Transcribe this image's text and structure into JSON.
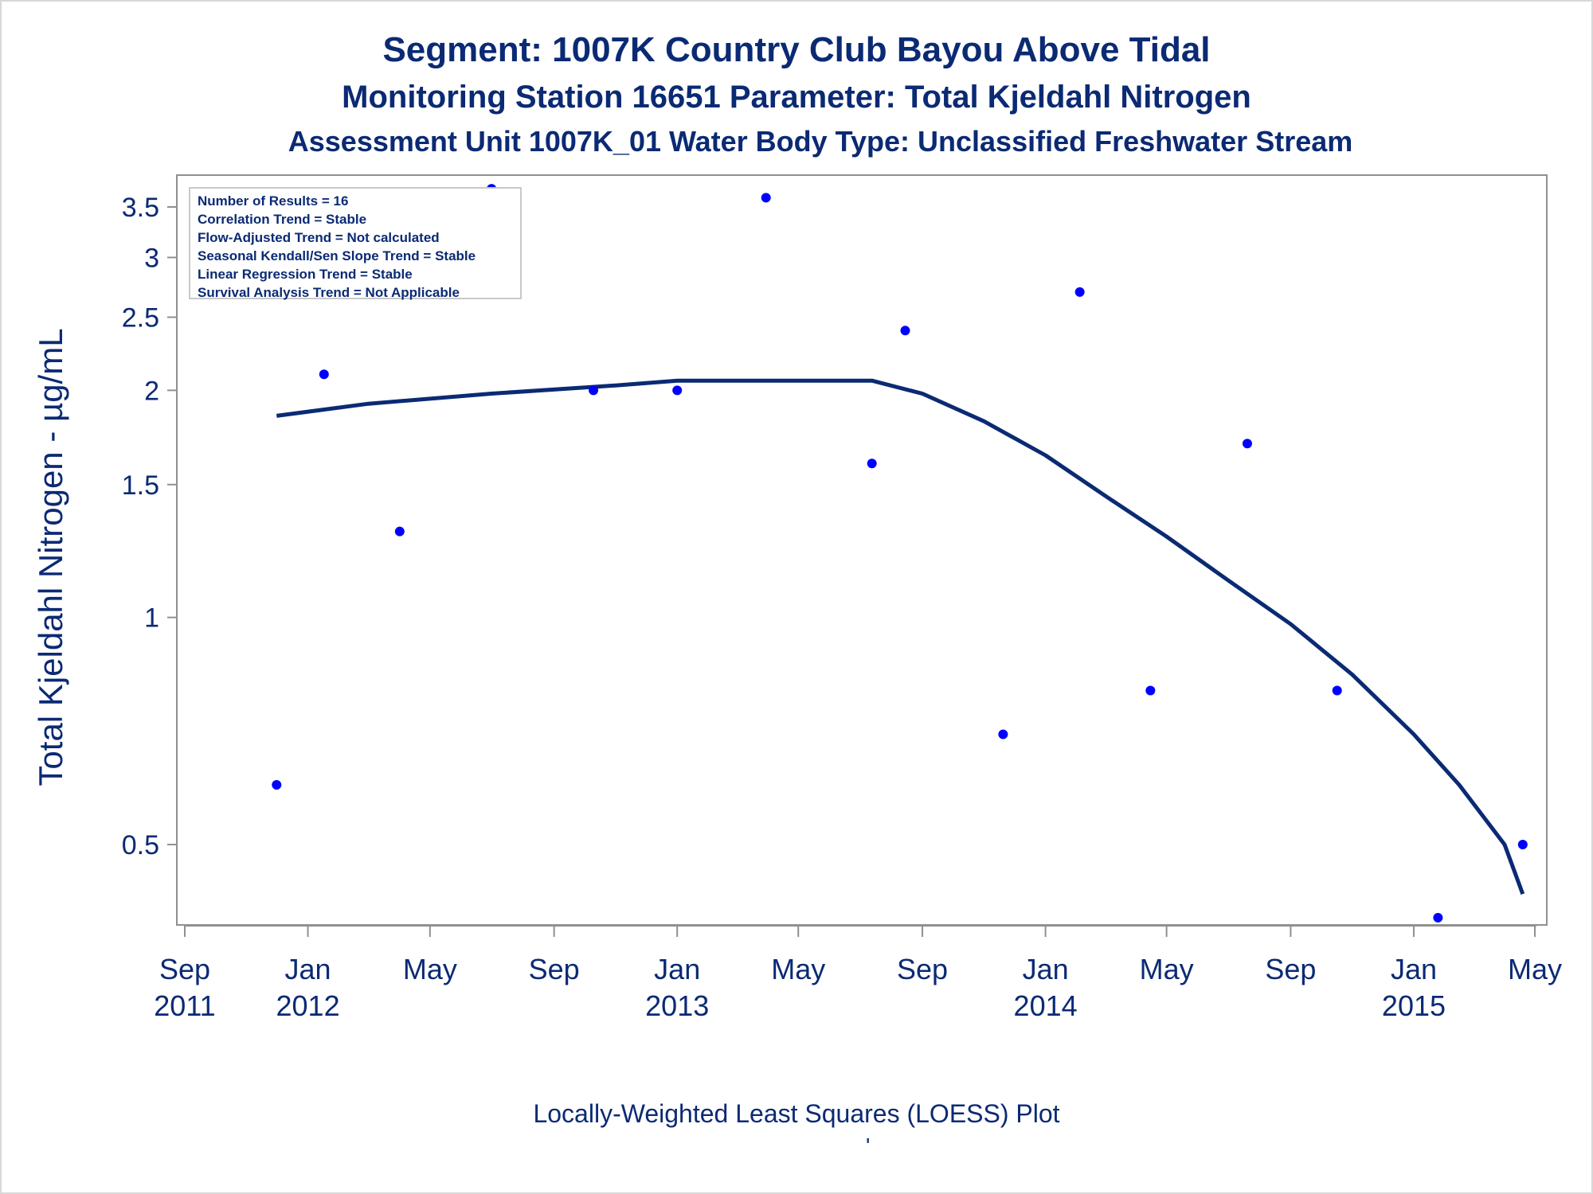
{
  "titles": {
    "line1": "Segment: 1007K  Country Club Bayou Above Tidal",
    "line2": "Monitoring Station 16651 Parameter: Total Kjeldahl Nitrogen",
    "line3": "Assessment Unit 1007K_01   Water Body Type: Unclassified Freshwater Stream"
  },
  "legend_box": [
    "Number of Results = 16",
    "Correlation Trend = Stable",
    "Flow-Adjusted Trend = Not calculated",
    "Seasonal Kendall/Sen Slope Trend = Stable",
    "Linear Regression Trend = Stable",
    "Survival Analysis Trend = Not Applicable"
  ],
  "footnote": "Locally-Weighted Least Squares (LOESS) Plot",
  "footnote_mark": "'",
  "colors": {
    "text": "#0b2a74",
    "points": "#0000ff",
    "line": "#0b2a74",
    "axis": "#909090"
  },
  "chart_data": {
    "type": "scatter",
    "title": "Segment: 1007K  Country Club Bayou Above Tidal",
    "subtitle": "Monitoring Station 16651 Parameter: Total Kjeldahl Nitrogen",
    "ylabel": "Total Kjeldahl Nitrogen -  µg/mL",
    "xlabel": "",
    "y_scale": "log",
    "ylim": [
      0.38,
      3.8
    ],
    "xlim": [
      "2011-08-25",
      "2015-05-10"
    ],
    "grid": false,
    "legend_position": "top-left",
    "y_ticks": [
      {
        "value": 0.5,
        "label": "0.5"
      },
      {
        "value": 1,
        "label": "1"
      },
      {
        "value": 1.5,
        "label": "1.5"
      },
      {
        "value": 2,
        "label": "2"
      },
      {
        "value": 2.5,
        "label": "2.5"
      },
      {
        "value": 3,
        "label": "3"
      },
      {
        "value": 3.5,
        "label": "3.5"
      }
    ],
    "x_ticks": [
      {
        "date": "2011-09-01",
        "month": "Sep",
        "year": "2011"
      },
      {
        "date": "2012-01-01",
        "month": "Jan",
        "year": "2012"
      },
      {
        "date": "2012-05-01",
        "month": "May",
        "year": ""
      },
      {
        "date": "2012-09-01",
        "month": "Sep",
        "year": ""
      },
      {
        "date": "2013-01-01",
        "month": "Jan",
        "year": "2013"
      },
      {
        "date": "2013-05-01",
        "month": "May",
        "year": ""
      },
      {
        "date": "2013-09-01",
        "month": "Sep",
        "year": ""
      },
      {
        "date": "2014-01-01",
        "month": "Jan",
        "year": "2014"
      },
      {
        "date": "2014-05-01",
        "month": "May",
        "year": ""
      },
      {
        "date": "2014-09-01",
        "month": "Sep",
        "year": ""
      },
      {
        "date": "2015-01-01",
        "month": "Jan",
        "year": "2015"
      },
      {
        "date": "2015-05-01",
        "month": "May",
        "year": ""
      }
    ],
    "series": [
      {
        "type": "scatter",
        "points": [
          {
            "x": "2011-12-01",
            "y": 0.6
          },
          {
            "x": "2012-01-17",
            "y": 2.1
          },
          {
            "x": "2012-04-01",
            "y": 1.3
          },
          {
            "x": "2012-07-01",
            "y": 3.7
          },
          {
            "x": "2012-10-10",
            "y": 2.0
          },
          {
            "x": "2013-01-01",
            "y": 2.0
          },
          {
            "x": "2013-03-30",
            "y": 3.6
          },
          {
            "x": "2013-07-13",
            "y": 1.6
          },
          {
            "x": "2013-08-15",
            "y": 2.4
          },
          {
            "x": "2013-11-20",
            "y": 0.7
          },
          {
            "x": "2014-02-04",
            "y": 2.7
          },
          {
            "x": "2014-04-15",
            "y": 0.8
          },
          {
            "x": "2014-07-20",
            "y": 1.7
          },
          {
            "x": "2014-10-17",
            "y": 0.8
          },
          {
            "x": "2015-01-25",
            "y": 0.4
          },
          {
            "x": "2015-04-19",
            "y": 0.5
          }
        ]
      },
      {
        "type": "line",
        "points": [
          {
            "x": "2011-12-01",
            "y": 1.85
          },
          {
            "x": "2012-03-01",
            "y": 1.92
          },
          {
            "x": "2012-07-01",
            "y": 1.98
          },
          {
            "x": "2012-11-01",
            "y": 2.03
          },
          {
            "x": "2013-01-01",
            "y": 2.06
          },
          {
            "x": "2013-05-01",
            "y": 2.06
          },
          {
            "x": "2013-07-13",
            "y": 2.06
          },
          {
            "x": "2013-09-01",
            "y": 1.98
          },
          {
            "x": "2013-11-01",
            "y": 1.82
          },
          {
            "x": "2014-01-01",
            "y": 1.64
          },
          {
            "x": "2014-03-01",
            "y": 1.45
          },
          {
            "x": "2014-05-01",
            "y": 1.28
          },
          {
            "x": "2014-07-01",
            "y": 1.12
          },
          {
            "x": "2014-09-01",
            "y": 0.98
          },
          {
            "x": "2014-11-01",
            "y": 0.84
          },
          {
            "x": "2015-01-01",
            "y": 0.7
          },
          {
            "x": "2015-02-15",
            "y": 0.6
          },
          {
            "x": "2015-04-01",
            "y": 0.5
          },
          {
            "x": "2015-04-19",
            "y": 0.43
          }
        ]
      }
    ]
  }
}
